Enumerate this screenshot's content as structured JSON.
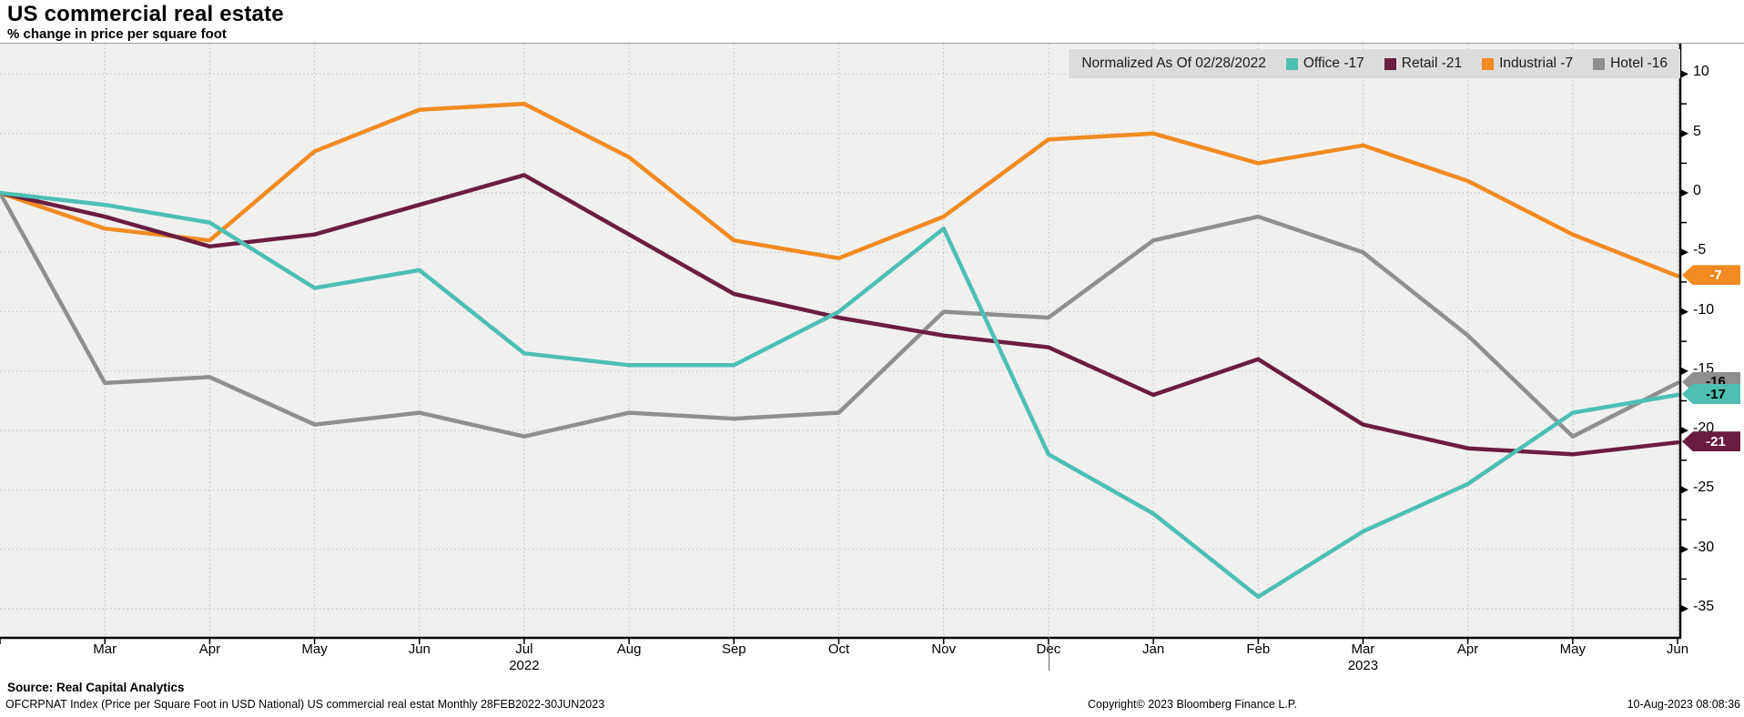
{
  "title": "US commercial real estate",
  "subtitle": "% change in price per square foot",
  "legend": {
    "normalized_label": "Normalized As Of 02/28/2022"
  },
  "chart_data": {
    "type": "line",
    "title": "US commercial real estate",
    "ylabel": "% change in price per square foot",
    "grid": "dotted",
    "legend_position": "top-right",
    "ylim": [
      -37.5,
      12.5
    ],
    "y_ticks": [
      10,
      5,
      0,
      -5,
      -10,
      -15,
      -20,
      -25,
      -30,
      -35
    ],
    "categories": [
      "Feb",
      "Mar",
      "Apr",
      "May",
      "Jun",
      "Jul",
      "Aug",
      "Sep",
      "Oct",
      "Nov",
      "Dec",
      "Jan",
      "Feb",
      "Mar",
      "Apr",
      "May",
      "Jun"
    ],
    "x_tick_labels": [
      "Mar",
      "Apr",
      "May",
      "Jun",
      "Jul",
      "Aug",
      "Sep",
      "Oct",
      "Nov",
      "Dec",
      "Jan",
      "Feb",
      "Mar",
      "Apr",
      "May",
      "Jun"
    ],
    "year_labels": [
      {
        "text": "2022",
        "tick_index": 5
      },
      {
        "text": "2023",
        "tick_index": 13
      }
    ],
    "series": [
      {
        "name": "Office",
        "end_label": "-17",
        "color": "#4dbfb2",
        "badge_text": "#000000",
        "values": [
          0,
          -1,
          -2.5,
          -8,
          -6.5,
          -13.5,
          -14.5,
          -14.5,
          -10,
          -3,
          -22,
          -27,
          -34,
          -28.5,
          -24.5,
          -18.5,
          -17
        ]
      },
      {
        "name": "Retail",
        "end_label": "-21",
        "color": "#6b1d40",
        "badge_text": "#ffffff",
        "values": [
          0,
          -2,
          -4.5,
          -3.5,
          -1,
          1.5,
          -3.5,
          -8.5,
          -10.5,
          -12,
          -13,
          -17,
          -14,
          -19.5,
          -21.5,
          -22,
          -21
        ]
      },
      {
        "name": "Industrial",
        "end_label": "-7",
        "color": "#f18b21",
        "badge_text": "#ffffff",
        "values": [
          0,
          -3,
          -4,
          3.5,
          7,
          7.5,
          3,
          -4,
          -5.5,
          -2,
          4.5,
          5,
          2.5,
          4,
          1,
          -3.5,
          -7
        ]
      },
      {
        "name": "Hotel",
        "end_label": "-16",
        "color": "#8f8f8f",
        "badge_text": "#000000",
        "values": [
          0,
          -16,
          -15.5,
          -19.5,
          -18.5,
          -20.5,
          -18.5,
          -19,
          -18.5,
          -10,
          -10.5,
          -4,
          -2,
          -5,
          -12,
          -20.5,
          -16
        ]
      }
    ],
    "colors": {
      "plot_background": "#f0f0ef",
      "gridline": "#bdbdbd",
      "axis": "#000000",
      "legend_background": "#dcdcdc"
    }
  },
  "footer": {
    "source_line": "Source: Real Capital Analytics",
    "description_line": "OFCRPNAT Index (Price per Square Foot in USD National) US commercial real estat  Monthly 28FEB2022-30JUN2023",
    "copyright": "Copyright© 2023 Bloomberg Finance L.P.",
    "timestamp": "10-Aug-2023 08:08:36"
  }
}
